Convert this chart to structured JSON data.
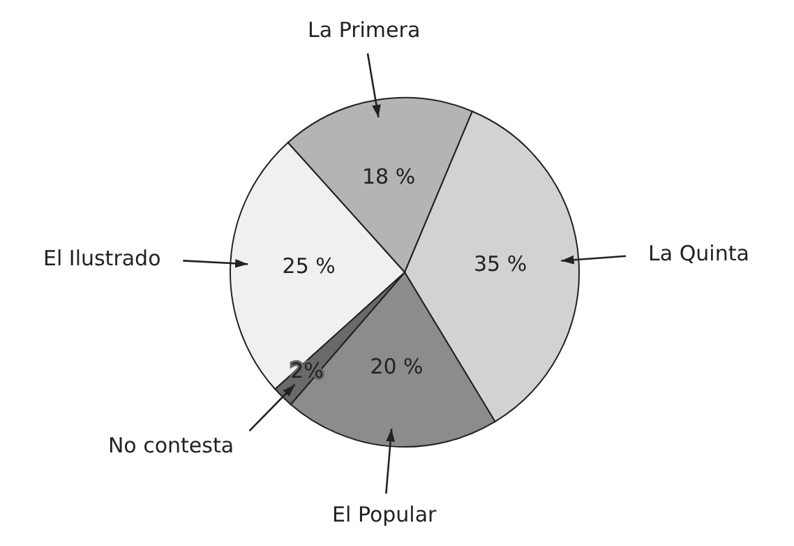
{
  "chart_data": {
    "type": "pie",
    "categories": [
      "La Primera",
      "La Quinta",
      "El Popular",
      "No contesta",
      "El Ilustrado"
    ],
    "values": [
      18,
      35,
      20,
      2,
      25
    ],
    "colors": [
      "#b4b4b4",
      "#d2d2d2",
      "#8c8c8c",
      "#6a6a6a",
      "#f0f0f0"
    ],
    "value_labels": [
      "18 %",
      "35 %",
      "20 %",
      "2%",
      "25 %"
    ]
  }
}
